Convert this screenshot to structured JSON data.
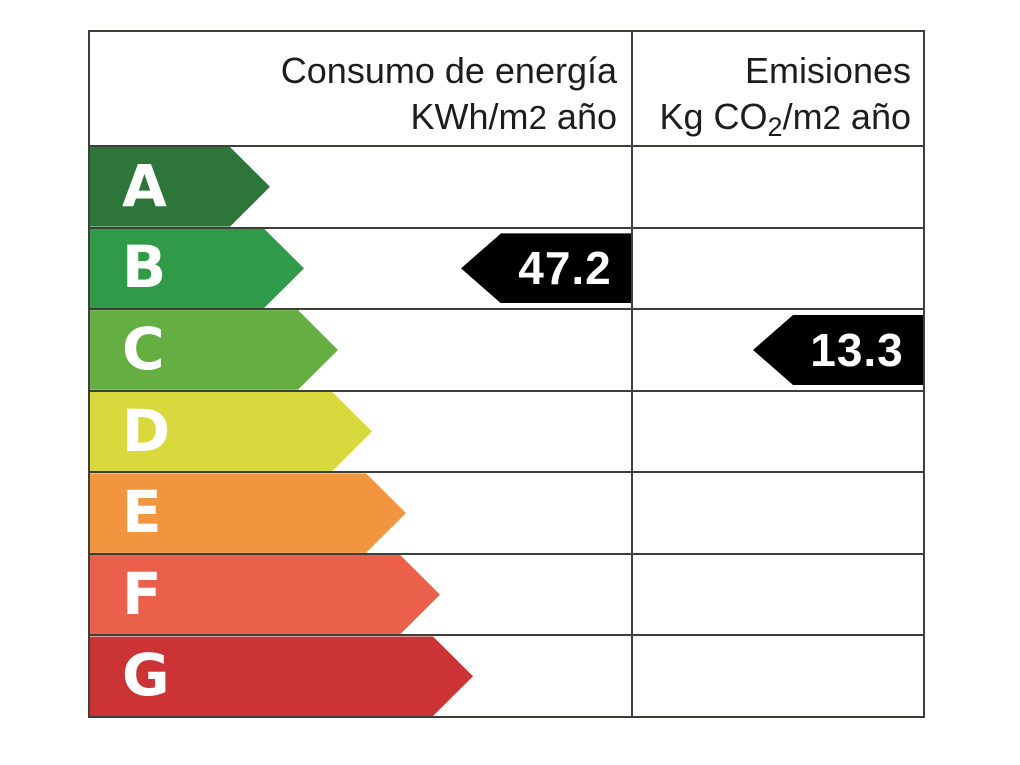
{
  "header": {
    "consumption": {
      "line1": "Consumo de energía",
      "unit_pre": "KWh/m",
      "unit_exp": "2",
      "unit_post": " año"
    },
    "emissions": {
      "line1": "Emisiones",
      "unit_pre": "Kg CO",
      "unit_sub": "2",
      "unit_mid": "/m",
      "unit_exp": "2",
      "unit_post": " año"
    }
  },
  "ratings": [
    {
      "letter": "A",
      "color": "#2d7539"
    },
    {
      "letter": "B",
      "color": "#2f9b48"
    },
    {
      "letter": "C",
      "color": "#65ae41"
    },
    {
      "letter": "D",
      "color": "#d8d93c"
    },
    {
      "letter": "E",
      "color": "#f2953f"
    },
    {
      "letter": "F",
      "color": "#ea604b"
    },
    {
      "letter": "G",
      "color": "#cb3334"
    }
  ],
  "indicators": {
    "consumption": {
      "value": "47.2",
      "rating_row": "B",
      "arrow_color": "#000000",
      "text_color": "#ffffff"
    },
    "emissions": {
      "value": "13.3",
      "rating_row": "C",
      "arrow_color": "#000000",
      "text_color": "#ffffff"
    }
  },
  "chart_data": {
    "type": "bar",
    "title": "",
    "categories": [
      "A",
      "B",
      "C",
      "D",
      "E",
      "F",
      "G"
    ],
    "bar_colors": [
      "#2d7539",
      "#2f9b48",
      "#65ae41",
      "#d8d93c",
      "#f2953f",
      "#ea604b",
      "#cb3334"
    ],
    "bar_relative_widths": [
      180,
      214,
      248,
      282,
      316,
      350,
      383
    ],
    "series": [
      {
        "name": "Consumo de energía KWh/m2 año",
        "rating": "B",
        "value": 47.2
      },
      {
        "name": "Emisiones Kg CO2/m2 año",
        "rating": "C",
        "value": 13.3
      }
    ],
    "legend": "none",
    "grid": "table-borders",
    "orientation": "horizontal"
  }
}
